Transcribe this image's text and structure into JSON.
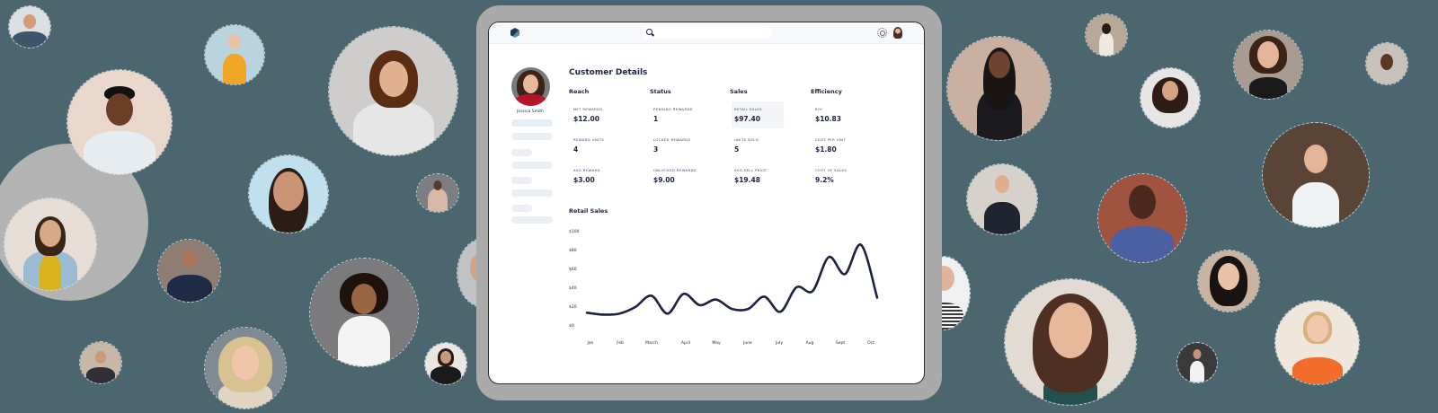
{
  "app": {
    "topbar": {
      "logo": "hexagon-logo-icon",
      "search_placeholder": "",
      "settings_icon": "gear-icon",
      "avatar": "user-avatar"
    },
    "profile": {
      "name": "Jessica Smith"
    },
    "page_title": "Customer Details",
    "sections": [
      {
        "heading": "Reach",
        "metrics": [
          {
            "label": "NET REWARDS",
            "value": "$12.00"
          },
          {
            "label": "REWARD UNITS",
            "value": "4"
          },
          {
            "label": "AVG REWARD",
            "value": "$3.00"
          }
        ]
      },
      {
        "heading": "Status",
        "metrics": [
          {
            "label": "PENDING REWARDS",
            "value": "1"
          },
          {
            "label": "LOCKED REWARDS",
            "value": "3"
          },
          {
            "label": "UNLOCKED REWARDS",
            "value": "$9.00"
          }
        ]
      },
      {
        "heading": "Sales",
        "metrics": [
          {
            "label": "RETAIL SALES",
            "value": "$97.40",
            "highlighted": true
          },
          {
            "label": "UNITS SOLD",
            "value": "5"
          },
          {
            "label": "AVG SELL PRICE",
            "value": "$19.48"
          }
        ]
      },
      {
        "heading": "Efficiency",
        "metrics": [
          {
            "label": "ROI",
            "value": "$10.83"
          },
          {
            "label": "COST PER UNIT",
            "value": "$1.80"
          },
          {
            "label": "COST OF SALES",
            "value": "9.2%"
          }
        ]
      }
    ],
    "chart_title": "Retail Sales",
    "colors": {
      "background": "#4c6670",
      "accent_navy": "#1b2340",
      "bezel": "#aaaaaa",
      "highlight_cell": "#f3f5f9"
    }
  },
  "chart_data": {
    "type": "line",
    "title": "Retail Sales",
    "xlabel": "",
    "ylabel": "",
    "categories": [
      "Jan",
      "Feb",
      "March",
      "April",
      "May",
      "June",
      "July",
      "Aug",
      "Sept",
      "Oct"
    ],
    "y_ticks": [
      "$0",
      "$20",
      "$40",
      "$60",
      "$80",
      "$100"
    ],
    "ylim": [
      0,
      100
    ],
    "grid": false,
    "legend": null,
    "series": [
      {
        "name": "Retail Sales",
        "color": "#1b2340",
        "x": [
          "Jan",
          "Jan+",
          "Feb",
          "Feb+",
          "March",
          "March+",
          "April",
          "April+",
          "May",
          "May+",
          "June",
          "June+",
          "July",
          "July+",
          "Aug",
          "Aug+",
          "Sept",
          "Sept+",
          "Oct"
        ],
        "values": [
          14,
          12,
          13,
          20,
          32,
          13,
          34,
          22,
          28,
          18,
          18,
          31,
          15,
          41,
          37,
          73,
          55,
          86,
          30
        ]
      }
    ]
  }
}
